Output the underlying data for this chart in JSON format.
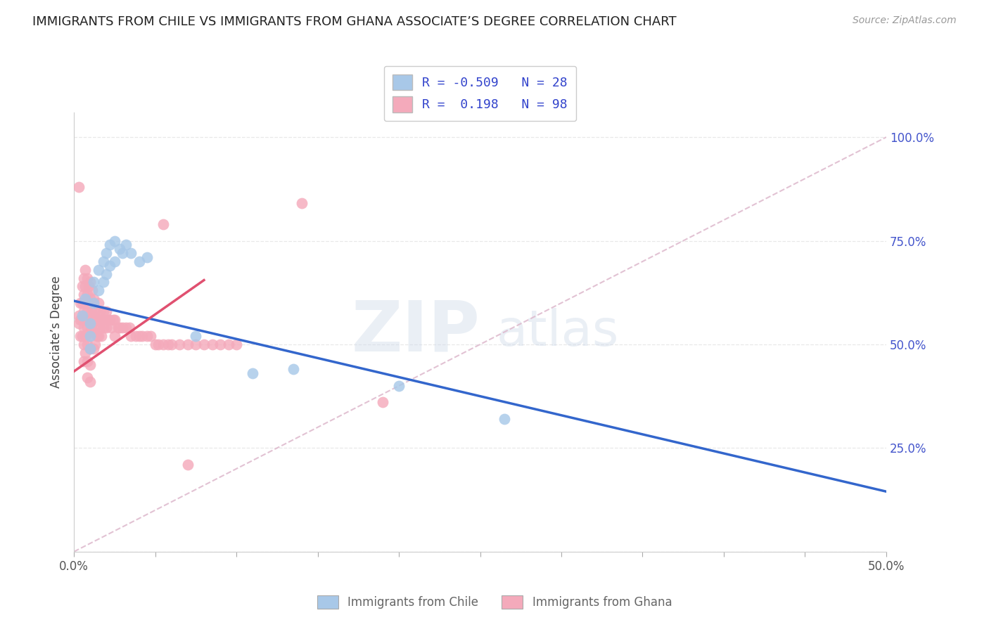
{
  "title": "IMMIGRANTS FROM CHILE VS IMMIGRANTS FROM GHANA ASSOCIATE’S DEGREE CORRELATION CHART",
  "source": "Source: ZipAtlas.com",
  "ylabel": "Associate’s Degree",
  "watermark_text": "ZIPatlas",
  "legend_chile_r": "-0.509",
  "legend_chile_n": "28",
  "legend_ghana_r": "0.198",
  "legend_ghana_n": "98",
  "chile_color": "#a8c8e8",
  "ghana_color": "#f4aabb",
  "chile_line_color": "#3366cc",
  "ghana_line_color": "#e05070",
  "diag_line_color": "#ddb8cc",
  "xlim": [
    0.0,
    0.5
  ],
  "ylim": [
    0.0,
    1.06
  ],
  "chile_line_x0": 0.0,
  "chile_line_y0": 0.605,
  "chile_line_x1": 0.5,
  "chile_line_y1": 0.145,
  "ghana_line_x0": 0.0,
  "ghana_line_y0": 0.435,
  "ghana_line_x1": 0.08,
  "ghana_line_y1": 0.655,
  "chile_x": [
    0.005,
    0.007,
    0.01,
    0.01,
    0.01,
    0.012,
    0.012,
    0.015,
    0.015,
    0.018,
    0.018,
    0.02,
    0.02,
    0.022,
    0.022,
    0.025,
    0.025,
    0.028,
    0.03,
    0.032,
    0.035,
    0.04,
    0.045,
    0.075,
    0.11,
    0.135,
    0.2,
    0.265
  ],
  "chile_y": [
    0.57,
    0.61,
    0.55,
    0.52,
    0.49,
    0.65,
    0.6,
    0.68,
    0.63,
    0.7,
    0.65,
    0.72,
    0.67,
    0.74,
    0.69,
    0.75,
    0.7,
    0.73,
    0.72,
    0.74,
    0.72,
    0.7,
    0.71,
    0.52,
    0.43,
    0.44,
    0.4,
    0.32
  ],
  "ghana_x": [
    0.003,
    0.003,
    0.004,
    0.004,
    0.004,
    0.005,
    0.005,
    0.005,
    0.005,
    0.006,
    0.006,
    0.006,
    0.006,
    0.006,
    0.006,
    0.007,
    0.007,
    0.007,
    0.007,
    0.007,
    0.007,
    0.008,
    0.008,
    0.008,
    0.008,
    0.008,
    0.008,
    0.008,
    0.009,
    0.009,
    0.009,
    0.009,
    0.01,
    0.01,
    0.01,
    0.01,
    0.01,
    0.01,
    0.01,
    0.011,
    0.011,
    0.011,
    0.012,
    0.012,
    0.012,
    0.012,
    0.013,
    0.013,
    0.013,
    0.014,
    0.014,
    0.015,
    0.015,
    0.015,
    0.016,
    0.016,
    0.017,
    0.017,
    0.018,
    0.018,
    0.019,
    0.02,
    0.02,
    0.021,
    0.022,
    0.023,
    0.024,
    0.025,
    0.025,
    0.027,
    0.028,
    0.03,
    0.032,
    0.034,
    0.035,
    0.038,
    0.04,
    0.042,
    0.045,
    0.047,
    0.05,
    0.052,
    0.055,
    0.058,
    0.06,
    0.065,
    0.07,
    0.075,
    0.08,
    0.085,
    0.09,
    0.095,
    0.1,
    0.003,
    0.14,
    0.055,
    0.19,
    0.07
  ],
  "ghana_y": [
    0.57,
    0.55,
    0.6,
    0.56,
    0.52,
    0.64,
    0.6,
    0.56,
    0.52,
    0.66,
    0.62,
    0.58,
    0.54,
    0.5,
    0.46,
    0.68,
    0.64,
    0.6,
    0.56,
    0.52,
    0.48,
    0.66,
    0.62,
    0.58,
    0.54,
    0.5,
    0.46,
    0.42,
    0.64,
    0.6,
    0.56,
    0.52,
    0.65,
    0.61,
    0.57,
    0.53,
    0.49,
    0.45,
    0.41,
    0.63,
    0.59,
    0.55,
    0.61,
    0.57,
    0.53,
    0.49,
    0.58,
    0.54,
    0.5,
    0.56,
    0.52,
    0.6,
    0.56,
    0.52,
    0.58,
    0.54,
    0.56,
    0.52,
    0.58,
    0.54,
    0.56,
    0.58,
    0.54,
    0.56,
    0.56,
    0.54,
    0.56,
    0.56,
    0.52,
    0.54,
    0.54,
    0.54,
    0.54,
    0.54,
    0.52,
    0.52,
    0.52,
    0.52,
    0.52,
    0.52,
    0.5,
    0.5,
    0.5,
    0.5,
    0.5,
    0.5,
    0.5,
    0.5,
    0.5,
    0.5,
    0.5,
    0.5,
    0.5,
    0.88,
    0.84,
    0.79,
    0.36,
    0.21
  ]
}
